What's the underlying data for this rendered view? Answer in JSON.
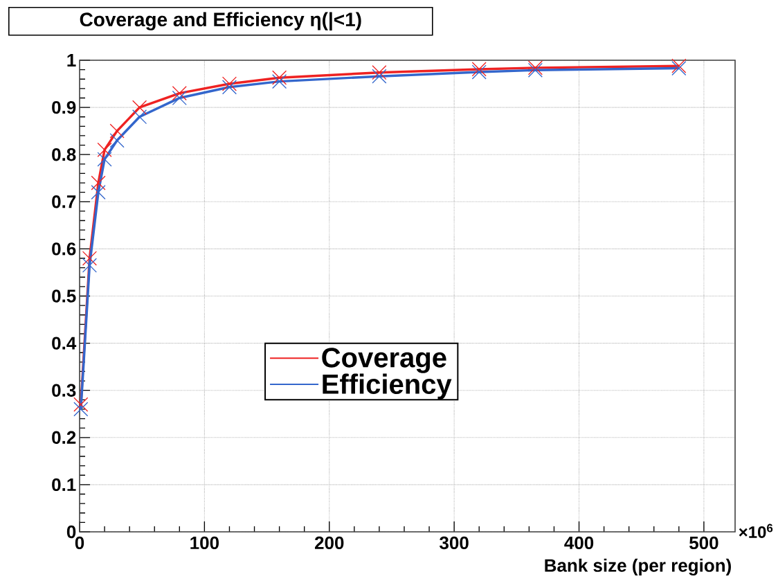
{
  "chart_data": {
    "type": "line",
    "title": "Coverage and Efficiency η(|<1)",
    "xlabel": "Bank size (per region)",
    "annotations": [
      "×10$^{6}$"
    ],
    "x": [
      1,
      8,
      15,
      20,
      30,
      48,
      80,
      120,
      160,
      240,
      320,
      365,
      480
    ],
    "series": [
      {
        "name": "Coverage",
        "color": "#ee2222",
        "values": [
          0.27,
          0.58,
          0.74,
          0.81,
          0.85,
          0.9,
          0.93,
          0.95,
          0.963,
          0.974,
          0.981,
          0.984,
          0.988
        ]
      },
      {
        "name": "Efficiency",
        "color": "#3366cc",
        "values": [
          0.26,
          0.565,
          0.72,
          0.79,
          0.83,
          0.88,
          0.92,
          0.943,
          0.955,
          0.966,
          0.975,
          0.979,
          0.983
        ]
      }
    ],
    "xlim": [
      0,
      525
    ],
    "ylim": [
      0,
      1
    ],
    "xticks": [
      0,
      100,
      200,
      300,
      400,
      500
    ],
    "yticks": [
      0,
      0.1,
      0.2,
      0.3,
      0.4,
      0.5,
      0.6,
      0.7,
      0.8,
      0.9,
      1
    ],
    "grid": true,
    "legend": "center",
    "marker": "cross",
    "line_style": "solid"
  }
}
